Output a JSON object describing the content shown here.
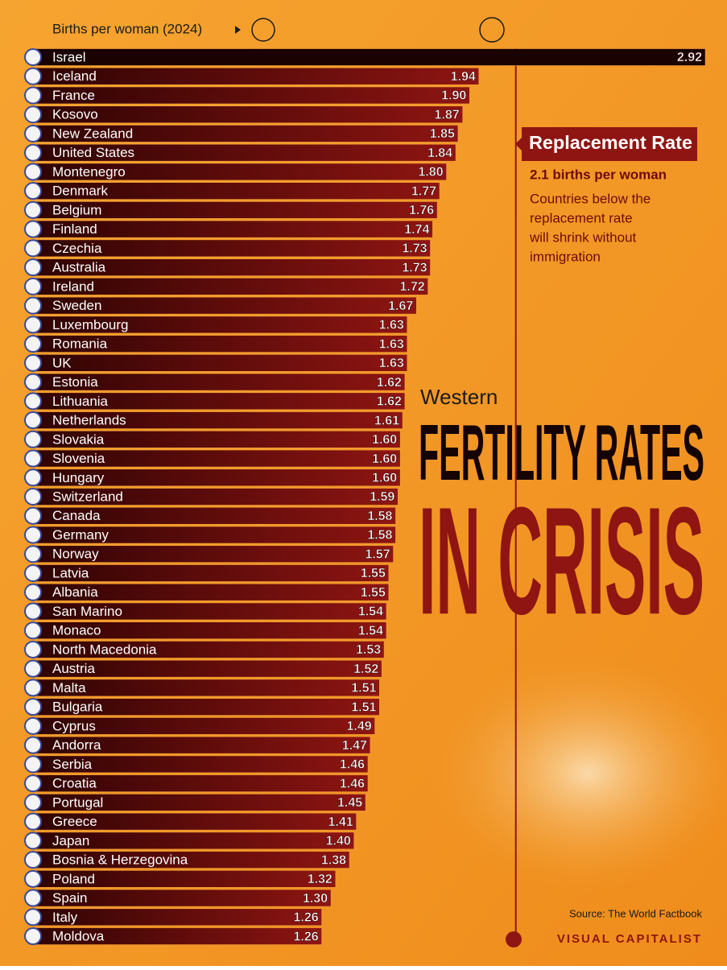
{
  "chart_data": {
    "type": "bar",
    "orientation": "horizontal",
    "axis_label": "Births per woman (2024)",
    "categories": [
      "Israel",
      "Iceland",
      "France",
      "Kosovo",
      "New Zealand",
      "United States",
      "Montenegro",
      "Denmark",
      "Belgium",
      "Finland",
      "Czechia",
      "Australia",
      "Ireland",
      "Sweden",
      "Luxembourg",
      "Romania",
      "UK",
      "Estonia",
      "Lithuania",
      "Netherlands",
      "Slovakia",
      "Slovenia",
      "Hungary",
      "Switzerland",
      "Canada",
      "Germany",
      "Norway",
      "Latvia",
      "Albania",
      "San Marino",
      "Monaco",
      "North Macedonia",
      "Austria",
      "Malta",
      "Bulgaria",
      "Cyprus",
      "Andorra",
      "Serbia",
      "Croatia",
      "Portugal",
      "Greece",
      "Japan",
      "Bosnia & Herzegovina",
      "Poland",
      "Spain",
      "Italy",
      "Moldova"
    ],
    "values": [
      2.92,
      1.94,
      1.9,
      1.87,
      1.85,
      1.84,
      1.8,
      1.77,
      1.76,
      1.74,
      1.73,
      1.73,
      1.72,
      1.67,
      1.63,
      1.63,
      1.63,
      1.62,
      1.62,
      1.61,
      1.6,
      1.6,
      1.6,
      1.59,
      1.58,
      1.58,
      1.57,
      1.55,
      1.55,
      1.54,
      1.54,
      1.53,
      1.52,
      1.51,
      1.51,
      1.49,
      1.47,
      1.46,
      1.46,
      1.45,
      1.41,
      1.4,
      1.38,
      1.32,
      1.3,
      1.26,
      1.26
    ],
    "value_labels": [
      "2.92",
      "1.94",
      "1.90",
      "1.87",
      "1.85",
      "1.84",
      "1.80",
      "1.77",
      "1.76",
      "1.74",
      "1.73",
      "1.73",
      "1.72",
      "1.67",
      "1.63",
      "1.63",
      "1.63",
      "1.62",
      "1.62",
      "1.61",
      "1.60",
      "1.60",
      "1.60",
      "1.59",
      "1.58",
      "1.58",
      "1.57",
      "1.55",
      "1.55",
      "1.54",
      "1.54",
      "1.53",
      "1.52",
      "1.51",
      "1.51",
      "1.49",
      "1.47",
      "1.46",
      "1.46",
      "1.45",
      "1.41",
      "1.40",
      "1.38",
      "1.32",
      "1.30",
      "1.26",
      "1.26"
    ],
    "color": "#7a0c0c",
    "xlim": [
      0,
      3
    ],
    "xgrid": [
      1
    ],
    "reference_line": {
      "value": 2.1,
      "title": "Replacement Rate",
      "subtitle": "2.1 births per woman",
      "note": [
        "Countries below the",
        "replacement rate",
        "will shrink without",
        "immigration"
      ]
    },
    "title": {
      "kicker": "Western",
      "line1": "FERTILITY RATES",
      "line2": "IN CRISIS"
    },
    "source": "Source: The World Factbook",
    "brand": "VISUAL CAPITALIST"
  }
}
